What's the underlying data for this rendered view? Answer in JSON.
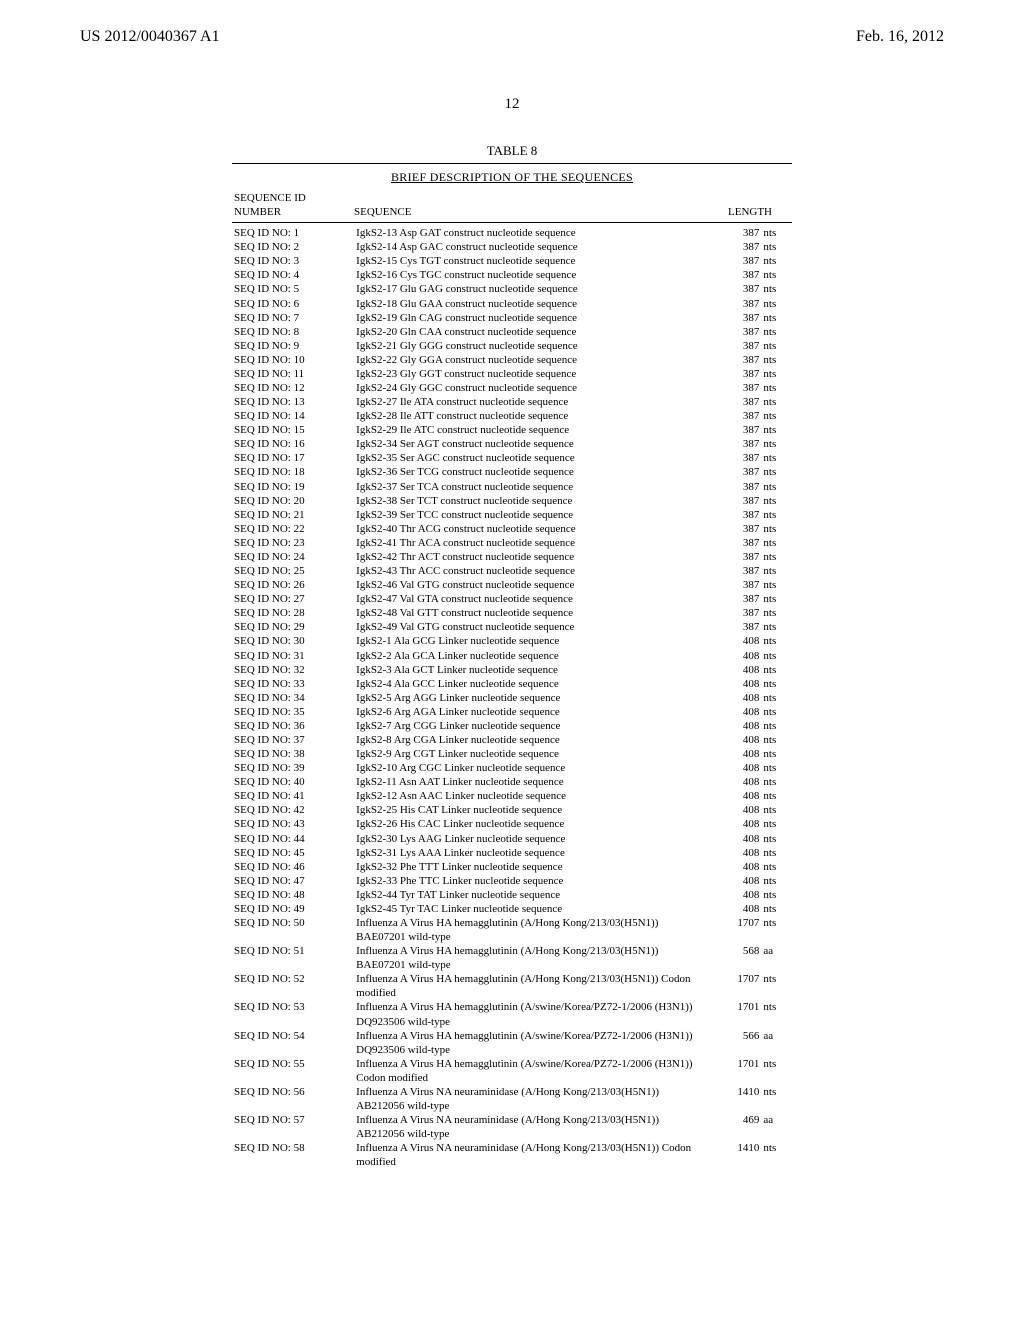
{
  "header": {
    "left": "US 2012/0040367 A1",
    "right": "Feb. 16, 2012"
  },
  "page_number": "12",
  "table": {
    "caption": "TABLE 8",
    "title": "BRIEF DESCRIPTION OF THE SEQUENCES",
    "columns": {
      "id_line1": "SEQUENCE ID",
      "id_line2": "NUMBER",
      "sequence": "SEQUENCE",
      "length": "LENGTH"
    },
    "rows": [
      {
        "id": "SEQ ID NO: 1",
        "seq": "IgkS2-13 Asp GAT construct nucleotide sequence",
        "len": "387",
        "unit": "nts"
      },
      {
        "id": "SEQ ID NO: 2",
        "seq": "IgkS2-14 Asp GAC construct nucleotide sequence",
        "len": "387",
        "unit": "nts"
      },
      {
        "id": "SEQ ID NO: 3",
        "seq": "IgkS2-15 Cys TGT construct nucleotide sequence",
        "len": "387",
        "unit": "nts"
      },
      {
        "id": "SEQ ID NO: 4",
        "seq": "IgkS2-16 Cys TGC construct nucleotide sequence",
        "len": "387",
        "unit": "nts"
      },
      {
        "id": "SEQ ID NO: 5",
        "seq": "IgkS2-17 Glu GAG construct nucleotide sequence",
        "len": "387",
        "unit": "nts"
      },
      {
        "id": "SEQ ID NO: 6",
        "seq": "IgkS2-18 Glu GAA construct nucleotide sequence",
        "len": "387",
        "unit": "nts"
      },
      {
        "id": "SEQ ID NO: 7",
        "seq": "IgkS2-19 Gln CAG construct nucleotide sequence",
        "len": "387",
        "unit": "nts"
      },
      {
        "id": "SEQ ID NO: 8",
        "seq": "IgkS2-20 Gln CAA construct nucleotide sequence",
        "len": "387",
        "unit": "nts"
      },
      {
        "id": "SEQ ID NO: 9",
        "seq": "IgkS2-21 Gly GGG construct nucleotide sequence",
        "len": "387",
        "unit": "nts"
      },
      {
        "id": "SEQ ID NO: 10",
        "seq": "IgkS2-22 Gly GGA construct nucleotide sequence",
        "len": "387",
        "unit": "nts"
      },
      {
        "id": "SEQ ID NO: 11",
        "seq": "IgkS2-23 Gly GGT construct nucleotide sequence",
        "len": "387",
        "unit": "nts"
      },
      {
        "id": "SEQ ID NO: 12",
        "seq": "IgkS2-24 Gly GGC construct nucleotide sequence",
        "len": "387",
        "unit": "nts"
      },
      {
        "id": "SEQ ID NO: 13",
        "seq": "IgkS2-27 Ile ATA construct nucleotide sequence",
        "len": "387",
        "unit": "nts"
      },
      {
        "id": "SEQ ID NO: 14",
        "seq": "IgkS2-28 Ile ATT construct nucleotide sequence",
        "len": "387",
        "unit": "nts"
      },
      {
        "id": "SEQ ID NO: 15",
        "seq": "IgkS2-29 Ile ATC construct nucleotide sequence",
        "len": "387",
        "unit": "nts"
      },
      {
        "id": "SEQ ID NO: 16",
        "seq": "IgkS2-34 Ser AGT construct nucleotide sequence",
        "len": "387",
        "unit": "nts"
      },
      {
        "id": "SEQ ID NO: 17",
        "seq": "IgkS2-35 Ser AGC construct nucleotide sequence",
        "len": "387",
        "unit": "nts"
      },
      {
        "id": "SEQ ID NO: 18",
        "seq": "IgkS2-36 Ser TCG construct nucleotide sequence",
        "len": "387",
        "unit": "nts"
      },
      {
        "id": "SEQ ID NO: 19",
        "seq": "IgkS2-37 Ser TCA construct nucleotide sequence",
        "len": "387",
        "unit": "nts"
      },
      {
        "id": "SEQ ID NO: 20",
        "seq": "IgkS2-38 Ser TCT construct nucleotide sequence",
        "len": "387",
        "unit": "nts"
      },
      {
        "id": "SEQ ID NO: 21",
        "seq": "IgkS2-39 Ser TCC construct nucleotide sequence",
        "len": "387",
        "unit": "nts"
      },
      {
        "id": "SEQ ID NO: 22",
        "seq": "IgkS2-40 Thr ACG construct nucleotide sequence",
        "len": "387",
        "unit": "nts"
      },
      {
        "id": "SEQ ID NO: 23",
        "seq": "IgkS2-41 Thr ACA construct nucleotide sequence",
        "len": "387",
        "unit": "nts"
      },
      {
        "id": "SEQ ID NO: 24",
        "seq": "IgkS2-42 Thr ACT construct nucleotide sequence",
        "len": "387",
        "unit": "nts"
      },
      {
        "id": "SEQ ID NO: 25",
        "seq": "IgkS2-43 Thr ACC construct nucleotide sequence",
        "len": "387",
        "unit": "nts"
      },
      {
        "id": "SEQ ID NO: 26",
        "seq": "IgkS2-46 Val GTG construct nucleotide sequence",
        "len": "387",
        "unit": "nts"
      },
      {
        "id": "SEQ ID NO: 27",
        "seq": "IgkS2-47 Val GTA construct nucleotide sequence",
        "len": "387",
        "unit": "nts"
      },
      {
        "id": "SEQ ID NO: 28",
        "seq": "IgkS2-48 Val GTT construct nucleotide sequence",
        "len": "387",
        "unit": "nts"
      },
      {
        "id": "SEQ ID NO: 29",
        "seq": "IgkS2-49 Val GTG construct nucleotide sequence",
        "len": "387",
        "unit": "nts"
      },
      {
        "id": "SEQ ID NO: 30",
        "seq": "IgkS2-1 Ala GCG Linker nucleotide sequence",
        "len": "408",
        "unit": "nts"
      },
      {
        "id": "SEQ ID NO: 31",
        "seq": "IgkS2-2 Ala GCA Linker nucleotide sequence",
        "len": "408",
        "unit": "nts"
      },
      {
        "id": "SEQ ID NO: 32",
        "seq": "IgkS2-3 Ala GCT Linker nucleotide sequence",
        "len": "408",
        "unit": "nts"
      },
      {
        "id": "SEQ ID NO: 33",
        "seq": "IgkS2-4 Ala GCC Linker nucleotide sequence",
        "len": "408",
        "unit": "nts"
      },
      {
        "id": "SEQ ID NO: 34",
        "seq": "IgkS2-5 Arg AGG Linker nucleotide sequence",
        "len": "408",
        "unit": "nts"
      },
      {
        "id": "SEQ ID NO: 35",
        "seq": "IgkS2-6 Arg AGA Linker nucleotide sequence",
        "len": "408",
        "unit": "nts"
      },
      {
        "id": "SEQ ID NO: 36",
        "seq": "IgkS2-7 Arg CGG Linker nucleotide sequence",
        "len": "408",
        "unit": "nts"
      },
      {
        "id": "SEQ ID NO: 37",
        "seq": "IgkS2-8 Arg CGA Linker nucleotide sequence",
        "len": "408",
        "unit": "nts"
      },
      {
        "id": "SEQ ID NO: 38",
        "seq": "IgkS2-9 Arg CGT Linker nucleotide sequence",
        "len": "408",
        "unit": "nts"
      },
      {
        "id": "SEQ ID NO: 39",
        "seq": "IgkS2-10 Arg CGC Linker nucleotide sequence",
        "len": "408",
        "unit": "nts"
      },
      {
        "id": "SEQ ID NO: 40",
        "seq": "IgkS2-11 Asn AAT Linker nucleotide sequence",
        "len": "408",
        "unit": "nts"
      },
      {
        "id": "SEQ ID NO: 41",
        "seq": "IgkS2-12 Asn AAC Linker nucleotide sequence",
        "len": "408",
        "unit": "nts"
      },
      {
        "id": "SEQ ID NO: 42",
        "seq": "IgkS2-25 His CAT Linker nucleotide sequence",
        "len": "408",
        "unit": "nts"
      },
      {
        "id": "SEQ ID NO: 43",
        "seq": "IgkS2-26 His CAC Linker nucleotide sequence",
        "len": "408",
        "unit": "nts"
      },
      {
        "id": "SEQ ID NO: 44",
        "seq": "IgkS2-30 Lys AAG Linker nucleotide sequence",
        "len": "408",
        "unit": "nts"
      },
      {
        "id": "SEQ ID NO: 45",
        "seq": "IgkS2-31 Lys AAA Linker nucleotide sequence",
        "len": "408",
        "unit": "nts"
      },
      {
        "id": "SEQ ID NO: 46",
        "seq": "IgkS2-32 Phe TTT Linker nucleotide sequence",
        "len": "408",
        "unit": "nts"
      },
      {
        "id": "SEQ ID NO: 47",
        "seq": "IgkS2-33 Phe TTC Linker nucleotide sequence",
        "len": "408",
        "unit": "nts"
      },
      {
        "id": "SEQ ID NO: 48",
        "seq": "IgkS2-44 Tyr TAT Linker nucleotide sequence",
        "len": "408",
        "unit": "nts"
      },
      {
        "id": "SEQ ID NO: 49",
        "seq": "IgkS2-45 Tyr TAC Linker nucleotide sequence",
        "len": "408",
        "unit": "nts"
      },
      {
        "id": "SEQ ID NO: 50",
        "seq": "Influenza A Virus HA hemagglutinin (A/Hong Kong/213/03(H5N1)) BAE07201 wild-type",
        "len": "1707",
        "unit": "nts"
      },
      {
        "id": "SEQ ID NO: 51",
        "seq": "Influenza A Virus HA hemagglutinin (A/Hong Kong/213/03(H5N1)) BAE07201 wild-type",
        "len": "568",
        "unit": "aa"
      },
      {
        "id": "SEQ ID NO: 52",
        "seq": "Influenza A Virus HA hemagglutinin (A/Hong Kong/213/03(H5N1)) Codon modified",
        "len": "1707",
        "unit": "nts"
      },
      {
        "id": "SEQ ID NO: 53",
        "seq": "Influenza A Virus HA hemagglutinin (A/swine/Korea/PZ72-1/2006 (H3N1)) DQ923506 wild-type",
        "len": "1701",
        "unit": "nts"
      },
      {
        "id": "SEQ ID NO: 54",
        "seq": "Influenza A Virus HA hemagglutinin (A/swine/Korea/PZ72-1/2006 (H3N1)) DQ923506 wild-type",
        "len": "566",
        "unit": "aa"
      },
      {
        "id": "SEQ ID NO: 55",
        "seq": "Influenza A Virus HA hemagglutinin (A/swine/Korea/PZ72-1/2006 (H3N1)) Codon modified",
        "len": "1701",
        "unit": "nts"
      },
      {
        "id": "SEQ ID NO: 56",
        "seq": "Influenza A Virus NA neuraminidase (A/Hong Kong/213/03(H5N1)) AB212056 wild-type",
        "len": "1410",
        "unit": "nts"
      },
      {
        "id": "SEQ ID NO: 57",
        "seq": "Influenza A Virus NA neuraminidase (A/Hong Kong/213/03(H5N1)) AB212056 wild-type",
        "len": "469",
        "unit": "aa"
      },
      {
        "id": "SEQ ID NO: 58",
        "seq": "Influenza A Virus NA neuraminidase (A/Hong Kong/213/03(H5N1)) Codon modified",
        "len": "1410",
        "unit": "nts"
      }
    ]
  }
}
